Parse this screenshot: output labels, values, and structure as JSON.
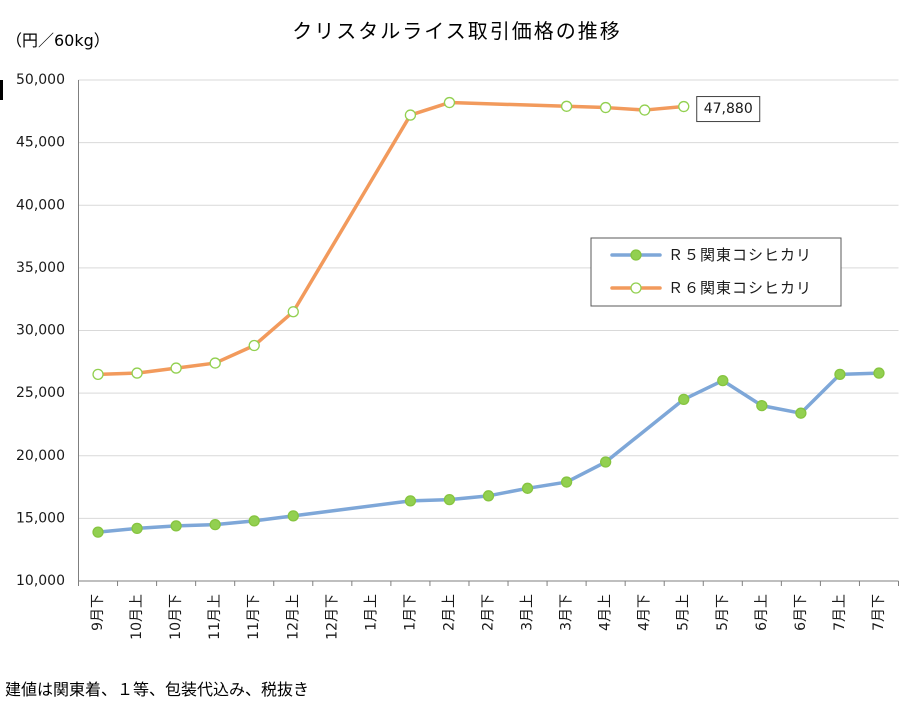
{
  "footnote": "建値は関東着、１等、包装代込み、税抜き",
  "chart_data": {
    "type": "line",
    "title": "クリスタルライス取引価格の推移",
    "ylabel": "（円／60kg）",
    "categories": [
      "9月下",
      "10月上",
      "10月下",
      "11月上",
      "11月下",
      "12月上",
      "12月下",
      "1月上",
      "1月下",
      "2月上",
      "2月下",
      "3月上",
      "3月下",
      "4月上",
      "4月下",
      "5月上",
      "5月下",
      "6月上",
      "6月下",
      "7月上",
      "7月下"
    ],
    "ylim": [
      10000,
      50000
    ],
    "yticks": [
      10000,
      15000,
      20000,
      25000,
      30000,
      35000,
      40000,
      45000,
      50000
    ],
    "grid": true,
    "legend_position": "center-right",
    "series": [
      {
        "name": "Ｒ５関東コシヒカリ",
        "values": [
          13900,
          14200,
          14400,
          14500,
          14800,
          15200,
          null,
          null,
          16400,
          16500,
          16800,
          17400,
          17900,
          19500,
          null,
          24500,
          26000,
          24000,
          23400,
          26500,
          26600
        ],
        "line_color": "#7ea7d8",
        "marker_fill": "#92d050",
        "marker_stroke": "#86c440"
      },
      {
        "name": "Ｒ６関東コシヒカリ",
        "values": [
          26500,
          26600,
          27000,
          27400,
          28800,
          31500,
          null,
          null,
          47200,
          48200,
          null,
          null,
          47900,
          47800,
          47600,
          47880,
          null,
          null,
          null,
          null,
          null
        ],
        "line_color": "#f29a5c",
        "marker_fill": "#ffffff",
        "marker_stroke": "#92d050",
        "data_labels": [
          {
            "category": "5月上",
            "text": "47,880"
          }
        ]
      }
    ]
  }
}
